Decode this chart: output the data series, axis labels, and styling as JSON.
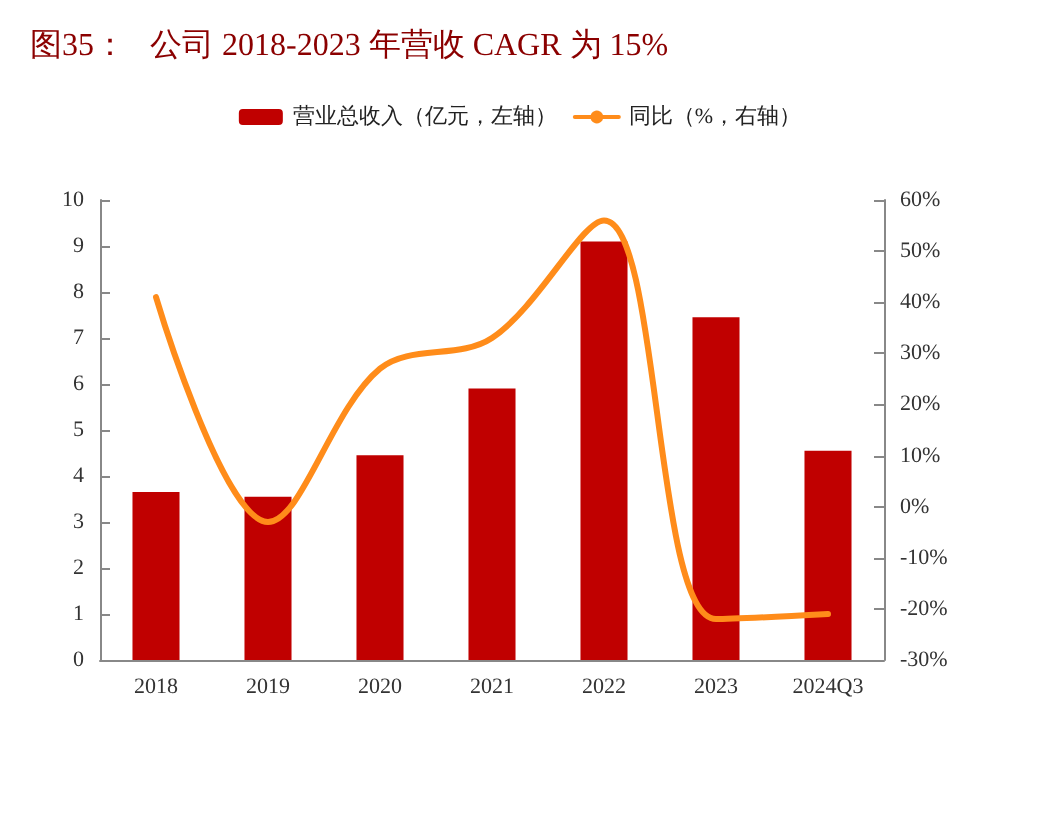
{
  "chart_data": {
    "type": "bar",
    "title": "图35：   公司 2018-2023 年营收 CAGR 为 15%",
    "categories": [
      "2018",
      "2019",
      "2020",
      "2021",
      "2022",
      "2023",
      "2024Q3"
    ],
    "series": [
      {
        "name": "营业总收入（亿元，左轴）",
        "color": "#c00000",
        "values": [
          3.65,
          3.55,
          4.45,
          5.9,
          9.1,
          7.45,
          4.55
        ]
      },
      {
        "name": "同比（%，右轴）",
        "type": "line",
        "axis": "y2",
        "color": "#ff8c1a",
        "values": [
          41,
          -3,
          27,
          33,
          56,
          -22,
          -21
        ]
      }
    ],
    "ylim": [
      0,
      10
    ],
    "yticks": [
      0,
      1,
      2,
      3,
      4,
      5,
      6,
      7,
      8,
      9,
      10
    ],
    "y2lim": [
      -30,
      60
    ],
    "y2ticks": [
      {
        "value": -30,
        "label": "-30%"
      },
      {
        "value": -20,
        "label": "-20%"
      },
      {
        "value": -10,
        "label": "-10%"
      },
      {
        "value": 0,
        "label": "0%"
      },
      {
        "value": 10,
        "label": "10%"
      },
      {
        "value": 20,
        "label": "20%"
      },
      {
        "value": 30,
        "label": "30%"
      },
      {
        "value": 40,
        "label": "40%"
      },
      {
        "value": 50,
        "label": "50%"
      },
      {
        "value": 60,
        "label": "60%"
      }
    ],
    "legend": "top",
    "grid": false,
    "marker": "none",
    "line_style": "solid"
  }
}
